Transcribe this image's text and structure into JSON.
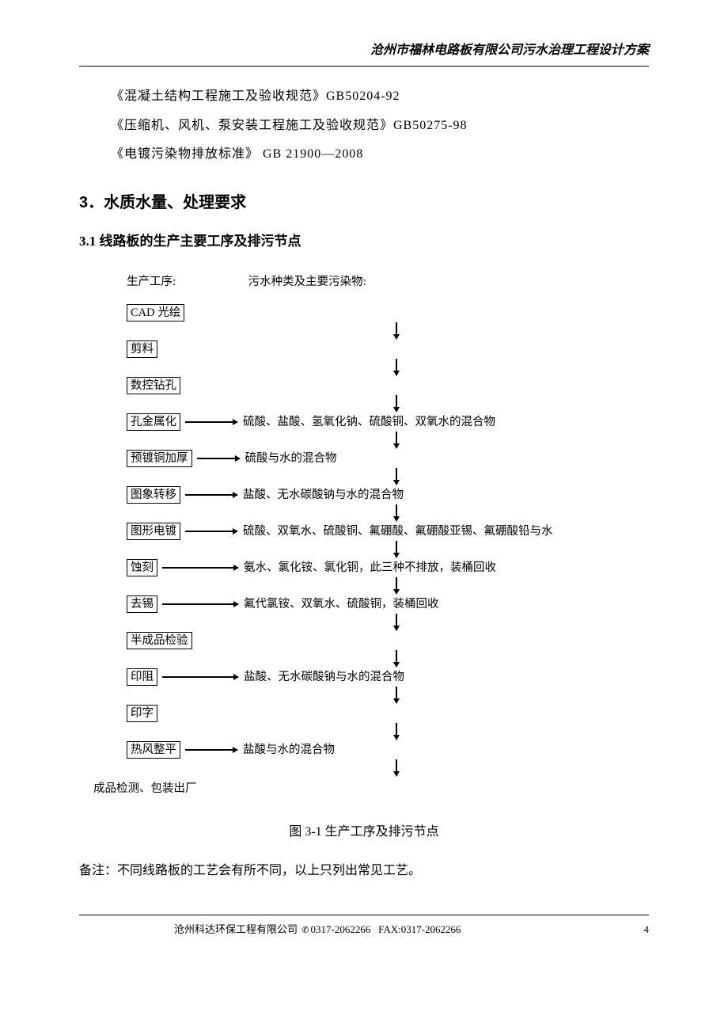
{
  "header": {
    "title": "沧州市福林电路板有限公司污水治理工程设计方案"
  },
  "standards": [
    "《混凝土结构工程施工及验收规范》GB50204-92",
    "《压缩机、风机、泵安装工程施工及验收规范》GB50275-98",
    "《电镀污染物排放标准》 GB 21900—2008"
  ],
  "section3": {
    "title": "3．水质水量、处理要求",
    "sub31": "3.1  线路板的生产主要工序及排污节点"
  },
  "flow_header": {
    "col1": "生产工序:",
    "col2": "污水种类及主要污染物:"
  },
  "flow_steps": [
    {
      "box": "CAD 光绘",
      "arrow_len": 0,
      "pollutant": ""
    },
    {
      "box": "剪料",
      "arrow_len": 0,
      "pollutant": ""
    },
    {
      "box": "数控钻孔",
      "arrow_len": 0,
      "pollutant": ""
    },
    {
      "box": "孔金属化",
      "arrow_len": 60,
      "pollutant": "硫酸、盐酸、氢氧化钠、硫酸铜、双氧水的混合物"
    },
    {
      "box": "预镀铜加厚",
      "arrow_len": 48,
      "pollutant": "硫酸与水的混合物"
    },
    {
      "box": "图象转移",
      "arrow_len": 60,
      "pollutant": "盐酸、无水碳酸钠与水的混合物"
    },
    {
      "box": "图形电镀",
      "arrow_len": 60,
      "pollutant": "硫酸、双氧水、硫酸铜、氟硼酸、氟硼酸亚锡、氟硼酸铅与水"
    },
    {
      "box": "蚀刻",
      "arrow_len": 90,
      "pollutant": "氨水、氯化铵、氯化铜，此三种不排放，装桶回收"
    },
    {
      "box": "去锡",
      "arrow_len": 90,
      "pollutant": "氟代氯铵、双氧水、硫酸铜，装桶回收"
    },
    {
      "box": "半成品检验",
      "arrow_len": 0,
      "pollutant": ""
    },
    {
      "box": "印阻",
      "arrow_len": 90,
      "pollutant": "盐酸、无水碳酸钠与水的混合物"
    },
    {
      "box": "印字",
      "arrow_len": 0,
      "pollutant": ""
    },
    {
      "box": "热风整平",
      "arrow_len": 60,
      "pollutant": "盐酸与水的混合物"
    }
  ],
  "final_step": "成品检测、包装出厂",
  "figure_caption": "图 3-1  生产工序及排污节点",
  "note": "备注：不同线路板的工艺会有所不同，以上只列出常见工艺。",
  "footer": {
    "company": "沧州科达环保工程有限公司",
    "tel": "0317-2062266",
    "fax": "FAX:0317-2062266",
    "page": "4"
  },
  "colors": {
    "text": "#000000",
    "bg": "#ffffff",
    "border": "#000000"
  }
}
